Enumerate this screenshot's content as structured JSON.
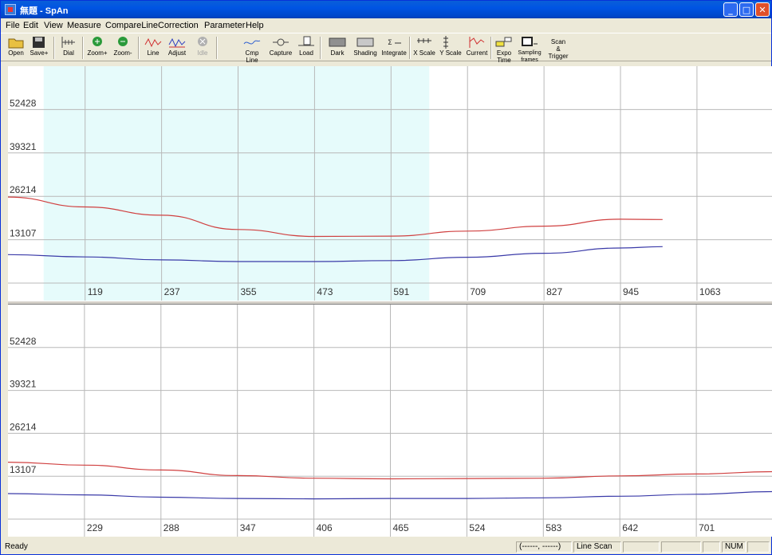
{
  "window": {
    "title": "無題 - SpAn"
  },
  "menu": [
    "File",
    "Edit",
    "View",
    "Measure",
    "CompareLine",
    "Correction",
    "Parameter",
    "Help"
  ],
  "toolbar": {
    "open": "Open",
    "save": "Save+",
    "dial": "Dial",
    "zoom_in": "Zoom+",
    "zoom_out": "Zoom-",
    "line": "Line",
    "adjust": "Adjust",
    "idle": "Idle",
    "cmp_line_1": "Cmp",
    "cmp_line_2": "Line",
    "capture": "Capture",
    "load": "Load",
    "dark": "Dark",
    "shading": "Shading",
    "integrate": "Integrate",
    "x_scale": "X Scale",
    "y_scale": "Y Scale",
    "current": "Current",
    "expo_1": "Expo",
    "expo_2": "Time",
    "sampling_1": "Sampling",
    "sampling_2": "frames",
    "scan_1": "Scan",
    "scan_2": "&",
    "scan_3": "Trigger"
  },
  "chart_data": [
    {
      "type": "line",
      "name_id": "top",
      "xlim": [
        0,
        1180
      ],
      "ylim": [
        0,
        65535
      ],
      "yticks": [
        13107,
        26214,
        39321,
        52428
      ],
      "xticks": [
        119,
        237,
        355,
        473,
        591,
        709,
        827,
        945,
        1063
      ],
      "highlight_range": [
        55,
        650
      ],
      "series": [
        {
          "color": "#d04040",
          "points": [
            [
              0,
              26000
            ],
            [
              119,
              23000
            ],
            [
              237,
              20500
            ],
            [
              355,
              16200
            ],
            [
              473,
              14100
            ],
            [
              591,
              14200
            ],
            [
              709,
              15700
            ],
            [
              827,
              17200
            ],
            [
              945,
              19300
            ],
            [
              1010,
              19200
            ]
          ]
        },
        {
          "color": "#3a3aa8",
          "points": [
            [
              0,
              8600
            ],
            [
              119,
              7900
            ],
            [
              237,
              7000
            ],
            [
              355,
              6500
            ],
            [
              473,
              6500
            ],
            [
              591,
              6800
            ],
            [
              709,
              7800
            ],
            [
              827,
              9000
            ],
            [
              945,
              10600
            ],
            [
              1010,
              11000
            ]
          ]
        }
      ],
      "grid": true
    },
    {
      "type": "line",
      "name_id": "bottom",
      "xlim": [
        170,
        760
      ],
      "ylim": [
        0,
        65535
      ],
      "yticks": [
        13107,
        26214,
        39321,
        52428
      ],
      "xticks": [
        229,
        288,
        347,
        406,
        465,
        524,
        583,
        642,
        701
      ],
      "series": [
        {
          "color": "#d04040",
          "points": [
            [
              170,
              17400
            ],
            [
              229,
              16500
            ],
            [
              288,
              15000
            ],
            [
              347,
              13300
            ],
            [
              406,
              12500
            ],
            [
              465,
              12300
            ],
            [
              524,
              12400
            ],
            [
              583,
              12500
            ],
            [
              642,
              13200
            ],
            [
              701,
              13800
            ],
            [
              760,
              14500
            ]
          ]
        },
        {
          "color": "#3a3aa8",
          "points": [
            [
              170,
              7800
            ],
            [
              229,
              7400
            ],
            [
              288,
              6700
            ],
            [
              347,
              6300
            ],
            [
              406,
              6200
            ],
            [
              465,
              6300
            ],
            [
              524,
              6300
            ],
            [
              583,
              6500
            ],
            [
              642,
              7000
            ],
            [
              701,
              7600
            ],
            [
              760,
              8400
            ]
          ]
        }
      ],
      "grid": true
    }
  ],
  "status": {
    "ready": "Ready",
    "coords": "(------, ------)",
    "mode": "Line Scan",
    "num": "NUM"
  }
}
